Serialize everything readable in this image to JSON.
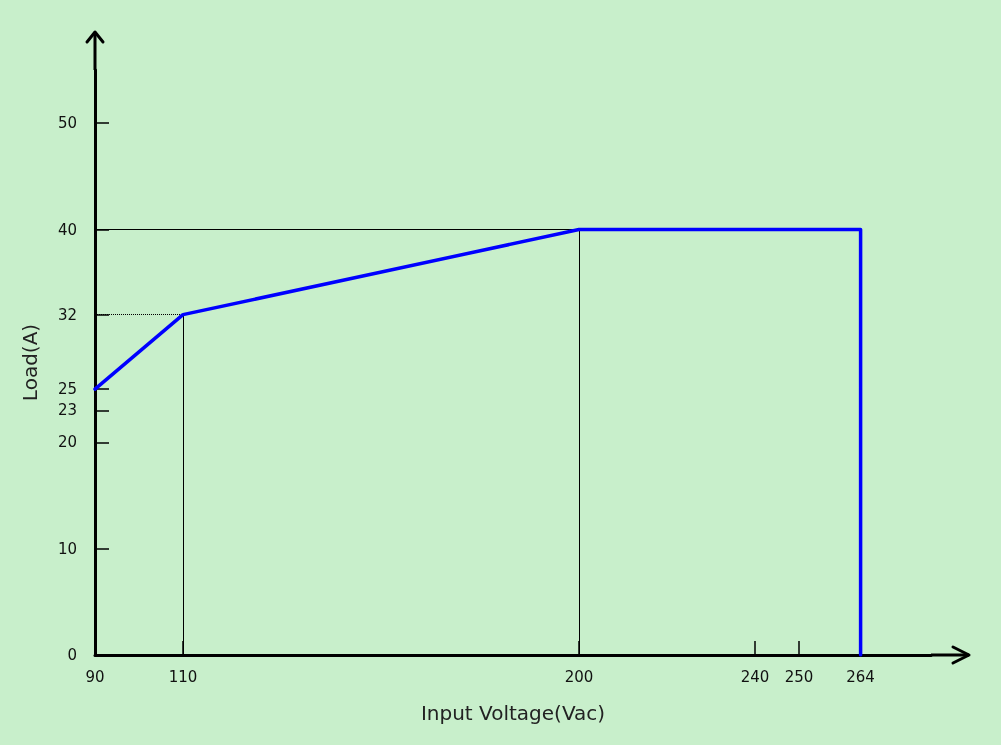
{
  "chart_data": {
    "type": "line",
    "xlabel": "Input Voltage(Vac)",
    "ylabel": "Load(A)",
    "x": [
      90,
      110,
      200,
      264,
      264
    ],
    "series": [
      {
        "color": "#0000ff",
        "values": [
          25,
          32,
          40,
          40,
          0
        ]
      }
    ],
    "xlim": [
      90,
      280
    ],
    "xticks": [
      90,
      110,
      200,
      240,
      250,
      264
    ],
    "ylim": [
      0,
      55
    ],
    "yticks": [
      0,
      10,
      20,
      23,
      25,
      32,
      40,
      50
    ],
    "ref_lines": [
      {
        "axis": "y",
        "value": 40,
        "color": "#000000",
        "line_style": "solid"
      },
      {
        "axis": "y",
        "value": 32,
        "color": "#000000",
        "line_style": "dotted"
      },
      {
        "axis": "x",
        "value": 110,
        "color": "#000000",
        "line_style": "solid"
      },
      {
        "axis": "x",
        "value": 200,
        "color": "#000000",
        "line_style": "solid"
      }
    ],
    "grid": false,
    "marker": "none",
    "line_style": "solid"
  }
}
